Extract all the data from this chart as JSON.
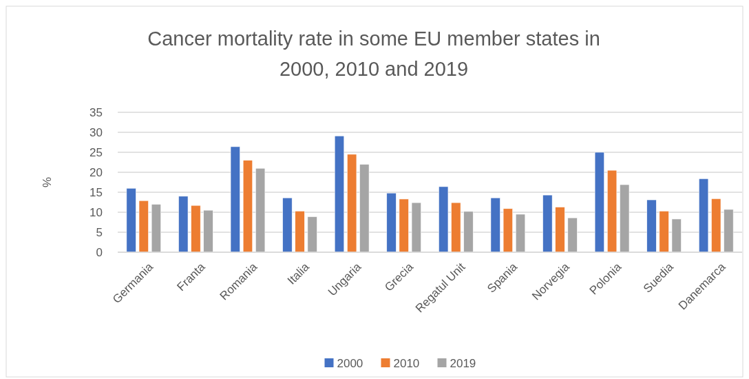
{
  "chart_data": {
    "type": "bar",
    "title": "Cancer mortality rate in some EU member states in 2000, 2010 and 2019",
    "ylabel": "%",
    "categories": [
      "Germania",
      "Franta",
      "Romania",
      "Italia",
      "Ungaria",
      "Grecia",
      "Regatul Unit",
      "Spania",
      "Norvegia",
      "Polonia",
      "Suedia",
      "Danemarca"
    ],
    "series": [
      {
        "name": "2000",
        "color": "#4472c4",
        "values": [
          16.0,
          14.0,
          26.4,
          13.6,
          29.1,
          14.8,
          16.4,
          13.6,
          14.3,
          25.0,
          13.1,
          18.4
        ]
      },
      {
        "name": "2010",
        "color": "#ed7d31",
        "values": [
          12.9,
          11.7,
          23.0,
          10.3,
          24.5,
          13.3,
          12.4,
          10.9,
          11.3,
          20.5,
          10.3,
          13.4
        ]
      },
      {
        "name": "2019",
        "color": "#a5a5a5",
        "values": [
          12.0,
          10.5,
          21.0,
          8.9,
          22.0,
          12.4,
          10.2,
          9.5,
          8.6,
          16.9,
          8.3,
          10.7
        ]
      }
    ],
    "ylim": [
      0,
      35
    ],
    "yticks": [
      0,
      5,
      10,
      15,
      20,
      25,
      30,
      35
    ],
    "grid": "y",
    "legend": "bottom"
  }
}
